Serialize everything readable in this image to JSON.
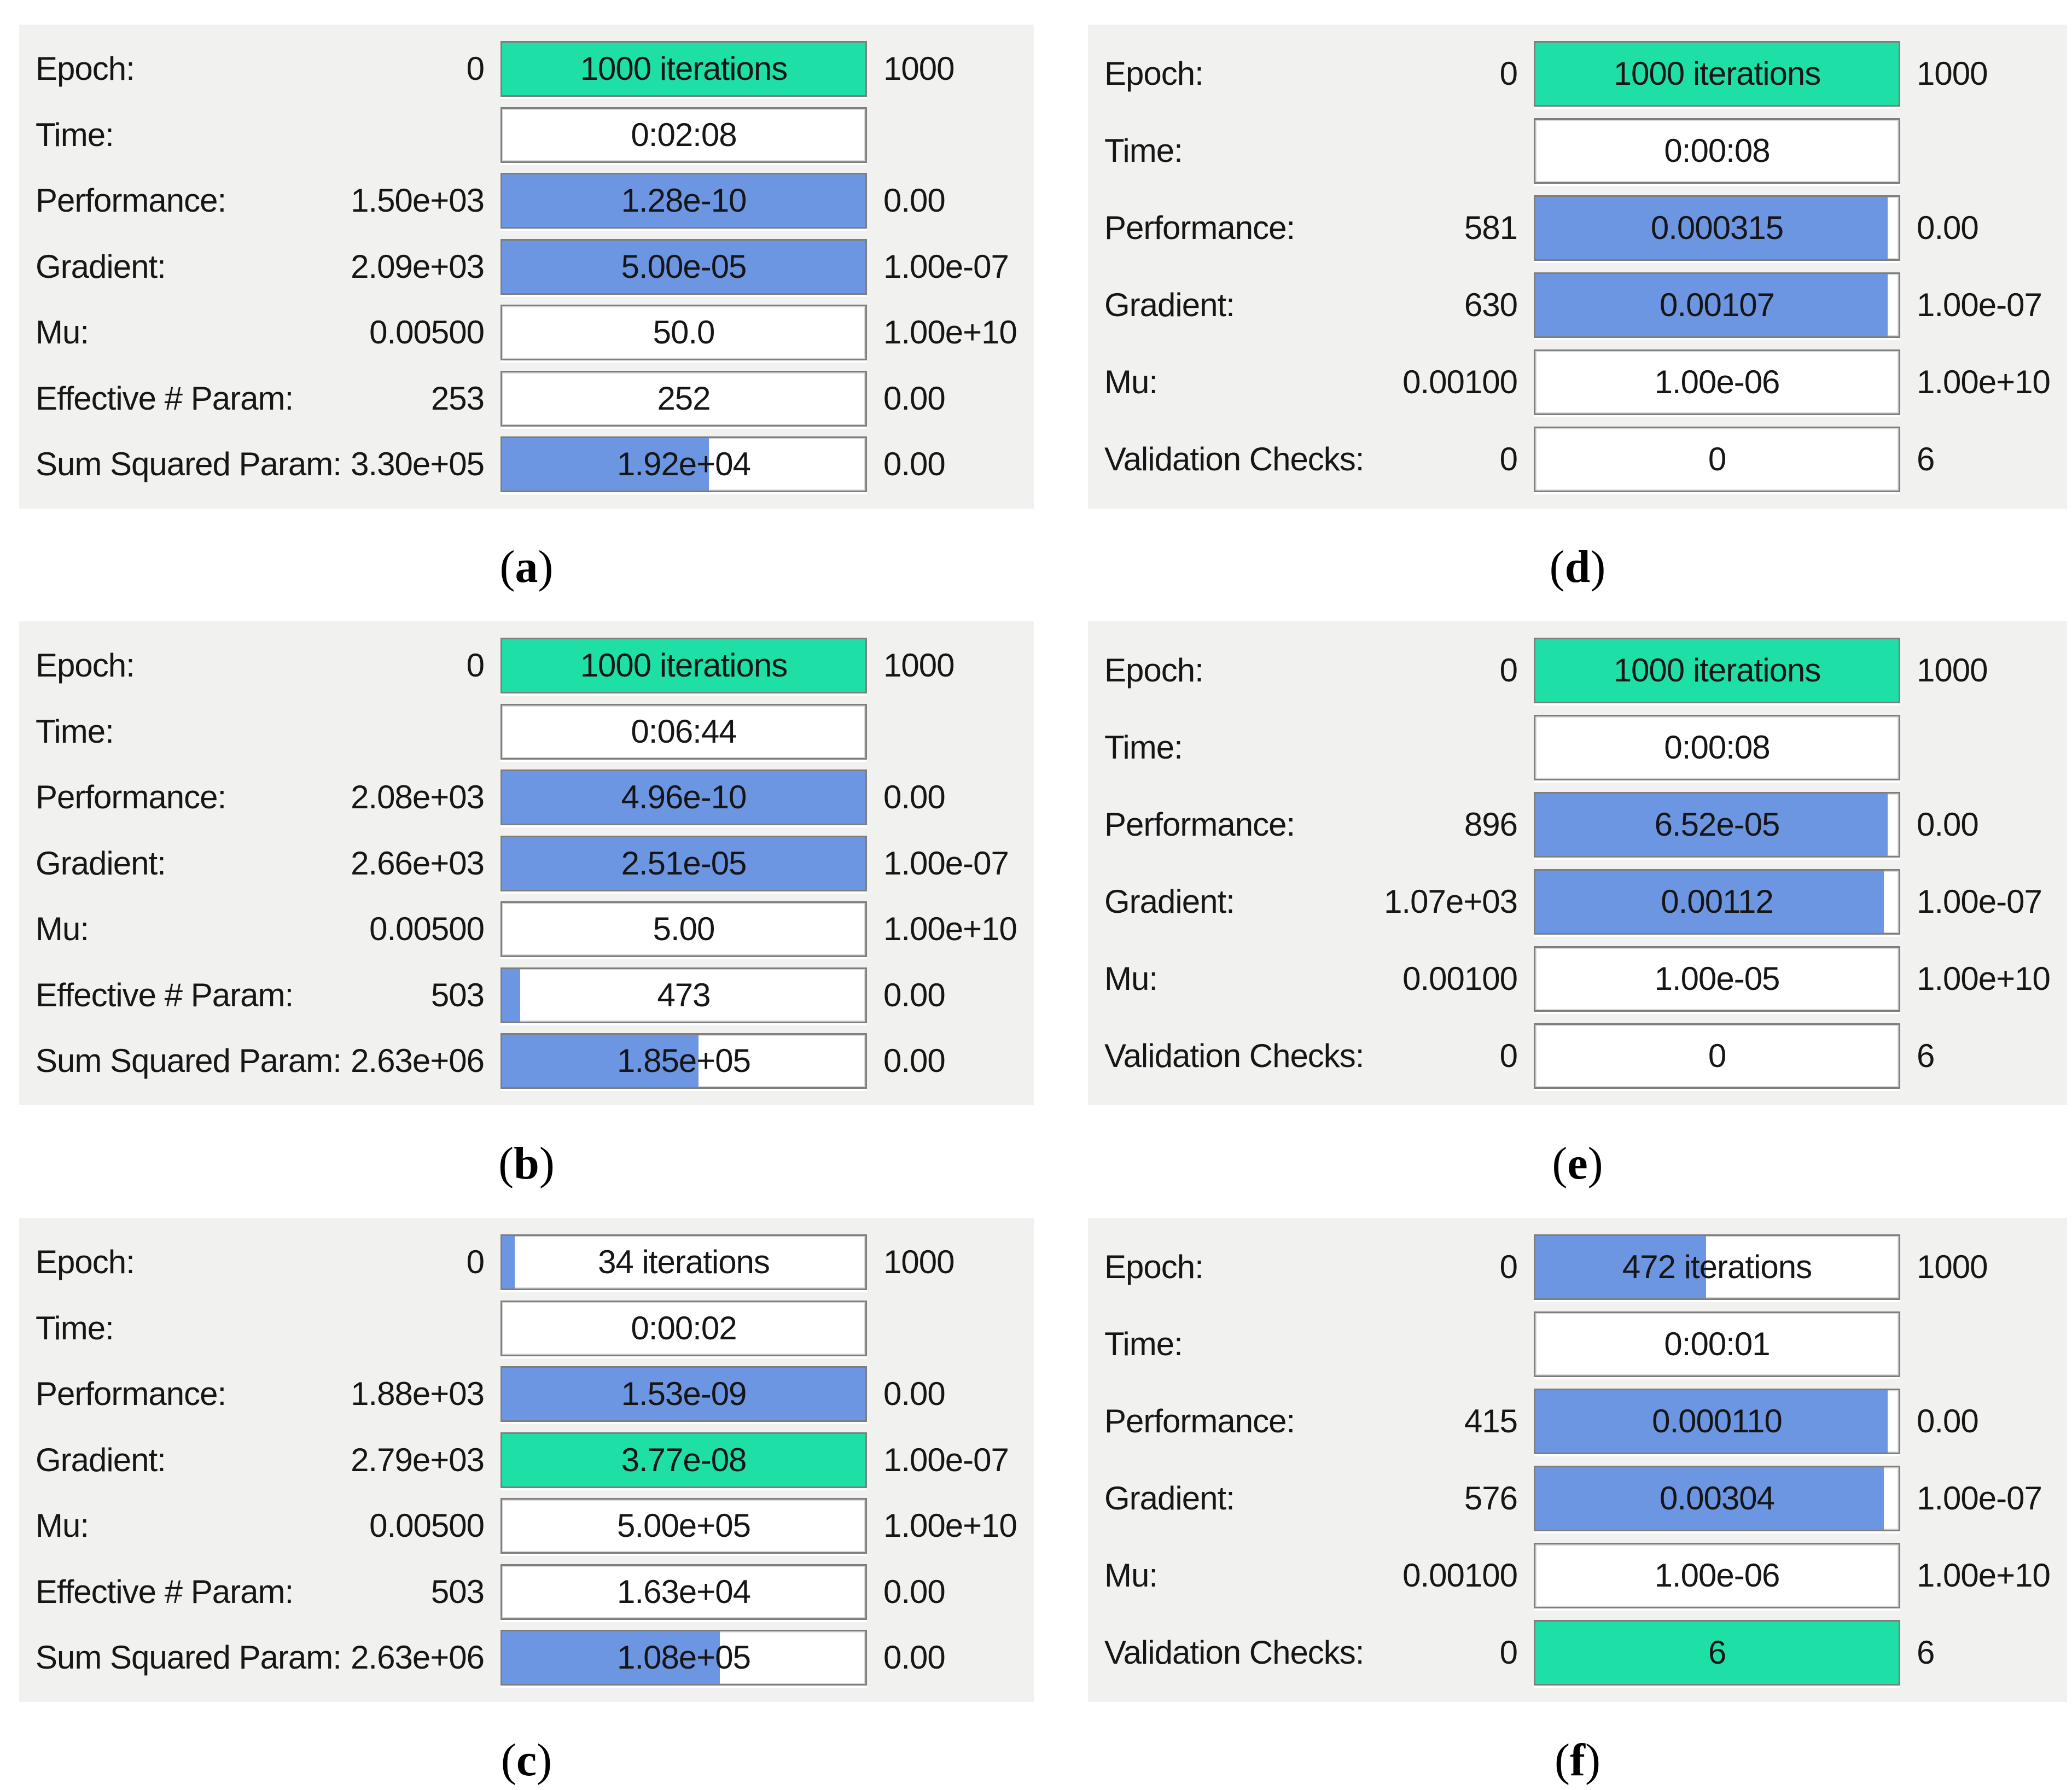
{
  "colors": {
    "green": "#1edfa6",
    "blue": "#6c95e2",
    "bar_track": "#ffffff",
    "panel_bg": "#f1f1f0",
    "bar_border": "#7e7e7e",
    "text": "#161616"
  },
  "panels": [
    {
      "caption": {
        "open": "(",
        "letter": "a",
        "close": ")"
      },
      "rows": [
        {
          "label": "Epoch:",
          "left": "0",
          "bar_text": "1000 iterations",
          "fill_pct": 100,
          "fill_color": "green",
          "right": "1000"
        },
        {
          "label": "Time:",
          "left": "",
          "bar_text": "0:02:08",
          "fill_pct": 0,
          "fill_color": "none",
          "right": ""
        },
        {
          "label": "Performance:",
          "left": "1.50e+03",
          "bar_text": "1.28e-10",
          "fill_pct": 100,
          "fill_color": "blue",
          "right": "0.00"
        },
        {
          "label": "Gradient:",
          "left": "2.09e+03",
          "bar_text": "5.00e-05",
          "fill_pct": 100,
          "fill_color": "blue",
          "right": "1.00e-07"
        },
        {
          "label": "Mu:",
          "left": "0.00500",
          "bar_text": "50.0",
          "fill_pct": 0,
          "fill_color": "none",
          "right": "1.00e+10"
        },
        {
          "label": "Effective # Param:",
          "left": "253",
          "bar_text": "252",
          "fill_pct": 0,
          "fill_color": "none",
          "right": "0.00"
        },
        {
          "label": "Sum Squared Param:",
          "left": "3.30e+05",
          "bar_text": "1.92e+04",
          "fill_pct": 57,
          "fill_color": "blue",
          "right": "0.00"
        }
      ]
    },
    {
      "caption": {
        "open": "(",
        "letter": "b",
        "close": ")"
      },
      "rows": [
        {
          "label": "Epoch:",
          "left": "0",
          "bar_text": "1000 iterations",
          "fill_pct": 100,
          "fill_color": "green",
          "right": "1000"
        },
        {
          "label": "Time:",
          "left": "",
          "bar_text": "0:06:44",
          "fill_pct": 0,
          "fill_color": "none",
          "right": ""
        },
        {
          "label": "Performance:",
          "left": "2.08e+03",
          "bar_text": "4.96e-10",
          "fill_pct": 100,
          "fill_color": "blue",
          "right": "0.00"
        },
        {
          "label": "Gradient:",
          "left": "2.66e+03",
          "bar_text": "2.51e-05",
          "fill_pct": 100,
          "fill_color": "blue",
          "right": "1.00e-07"
        },
        {
          "label": "Mu:",
          "left": "0.00500",
          "bar_text": "5.00",
          "fill_pct": 0,
          "fill_color": "none",
          "right": "1.00e+10"
        },
        {
          "label": "Effective # Param:",
          "left": "503",
          "bar_text": "473",
          "fill_pct": 5,
          "fill_color": "blue",
          "right": "0.00"
        },
        {
          "label": "Sum Squared Param:",
          "left": "2.63e+06",
          "bar_text": "1.85e+05",
          "fill_pct": 54,
          "fill_color": "blue",
          "right": "0.00"
        }
      ]
    },
    {
      "caption": {
        "open": "(",
        "letter": "c",
        "close": ")"
      },
      "rows": [
        {
          "label": "Epoch:",
          "left": "0",
          "bar_text": "34 iterations",
          "fill_pct": 3.4,
          "fill_color": "blue",
          "right": "1000"
        },
        {
          "label": "Time:",
          "left": "",
          "bar_text": "0:00:02",
          "fill_pct": 0,
          "fill_color": "none",
          "right": ""
        },
        {
          "label": "Performance:",
          "left": "1.88e+03",
          "bar_text": "1.53e-09",
          "fill_pct": 100,
          "fill_color": "blue",
          "right": "0.00"
        },
        {
          "label": "Gradient:",
          "left": "2.79e+03",
          "bar_text": "3.77e-08",
          "fill_pct": 100,
          "fill_color": "green",
          "right": "1.00e-07"
        },
        {
          "label": "Mu:",
          "left": "0.00500",
          "bar_text": "5.00e+05",
          "fill_pct": 0,
          "fill_color": "none",
          "right": "1.00e+10"
        },
        {
          "label": "Effective # Param:",
          "left": "503",
          "bar_text": "1.63e+04",
          "fill_pct": 0,
          "fill_color": "none",
          "right": "0.00"
        },
        {
          "label": "Sum Squared Param:",
          "left": "2.63e+06",
          "bar_text": "1.08e+05",
          "fill_pct": 60,
          "fill_color": "blue",
          "right": "0.00"
        }
      ]
    },
    {
      "caption": {
        "open": "(",
        "letter": "d",
        "close": ")"
      },
      "rows": [
        {
          "label": "Epoch:",
          "left": "0",
          "bar_text": "1000 iterations",
          "fill_pct": 100,
          "fill_color": "green",
          "right": "1000"
        },
        {
          "label": "Time:",
          "left": "",
          "bar_text": "0:00:08",
          "fill_pct": 0,
          "fill_color": "none",
          "right": ""
        },
        {
          "label": "Performance:",
          "left": "581",
          "bar_text": "0.000315",
          "fill_pct": 97,
          "fill_color": "blue",
          "right": "0.00"
        },
        {
          "label": "Gradient:",
          "left": "630",
          "bar_text": "0.00107",
          "fill_pct": 97,
          "fill_color": "blue",
          "right": "1.00e-07"
        },
        {
          "label": "Mu:",
          "left": "0.00100",
          "bar_text": "1.00e-06",
          "fill_pct": 0,
          "fill_color": "none",
          "right": "1.00e+10"
        },
        {
          "label": "Validation Checks:",
          "left": "0",
          "bar_text": "0",
          "fill_pct": 0,
          "fill_color": "none",
          "right": "6"
        }
      ]
    },
    {
      "caption": {
        "open": "(",
        "letter": "e",
        "close": ")"
      },
      "rows": [
        {
          "label": "Epoch:",
          "left": "0",
          "bar_text": "1000 iterations",
          "fill_pct": 100,
          "fill_color": "green",
          "right": "1000"
        },
        {
          "label": "Time:",
          "left": "",
          "bar_text": "0:00:08",
          "fill_pct": 0,
          "fill_color": "none",
          "right": ""
        },
        {
          "label": "Performance:",
          "left": "896",
          "bar_text": "6.52e-05",
          "fill_pct": 97,
          "fill_color": "blue",
          "right": "0.00"
        },
        {
          "label": "Gradient:",
          "left": "1.07e+03",
          "bar_text": "0.00112",
          "fill_pct": 96,
          "fill_color": "blue",
          "right": "1.00e-07"
        },
        {
          "label": "Mu:",
          "left": "0.00100",
          "bar_text": "1.00e-05",
          "fill_pct": 0,
          "fill_color": "none",
          "right": "1.00e+10"
        },
        {
          "label": "Validation Checks:",
          "left": "0",
          "bar_text": "0",
          "fill_pct": 0,
          "fill_color": "none",
          "right": "6"
        }
      ]
    },
    {
      "caption": {
        "open": "(",
        "letter": "f",
        "close": ")"
      },
      "rows": [
        {
          "label": "Epoch:",
          "left": "0",
          "bar_text": "472 iterations",
          "fill_pct": 47,
          "fill_color": "blue",
          "right": "1000"
        },
        {
          "label": "Time:",
          "left": "",
          "bar_text": "0:00:01",
          "fill_pct": 0,
          "fill_color": "none",
          "right": ""
        },
        {
          "label": "Performance:",
          "left": "415",
          "bar_text": "0.000110",
          "fill_pct": 97,
          "fill_color": "blue",
          "right": "0.00"
        },
        {
          "label": "Gradient:",
          "left": "576",
          "bar_text": "0.00304",
          "fill_pct": 96,
          "fill_color": "blue",
          "right": "1.00e-07"
        },
        {
          "label": "Mu:",
          "left": "0.00100",
          "bar_text": "1.00e-06",
          "fill_pct": 0,
          "fill_color": "none",
          "right": "1.00e+10"
        },
        {
          "label": "Validation Checks:",
          "left": "0",
          "bar_text": "6",
          "fill_pct": 100,
          "fill_color": "green",
          "right": "6"
        }
      ]
    }
  ]
}
